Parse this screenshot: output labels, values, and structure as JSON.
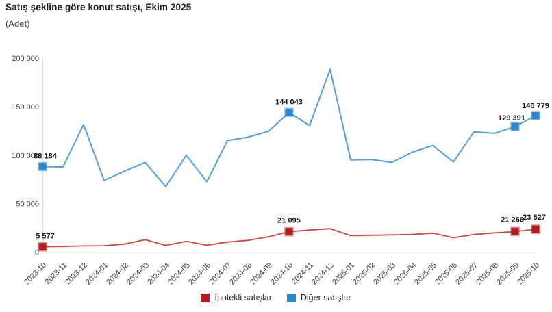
{
  "header": {
    "title": "Satış şekline göre konut satışı, Ekim 2025",
    "subtitle": "(Adet)"
  },
  "colors": {
    "mortgage_marker": "#b01e24",
    "mortgage_line": "#cb4742",
    "other_marker": "#2e86c8",
    "other_line": "#529fd8",
    "axis_line": "#dcdcdc",
    "tick_text": "#404040",
    "data_label_text": "#141414"
  },
  "legend": {
    "items": [
      {
        "label": "İpotekli satışlar",
        "color": "#b01e24"
      },
      {
        "label": "Diğer satışlar",
        "color": "#2e86c8"
      }
    ]
  },
  "chart_data": {
    "type": "line",
    "title": "Satış şekline göre konut satışı, Ekim 2025",
    "ylabel": "(Adet)",
    "xlabel": "",
    "ylim": [
      0,
      200000
    ],
    "grid": false,
    "legend_position": "bottom",
    "categories": [
      "2023-10",
      "2023-11",
      "2023-12",
      "2024-01",
      "2024-02",
      "2024-03",
      "2024-04",
      "2024-05",
      "2024-06",
      "2024-07",
      "2024-08",
      "2024-09",
      "2024-10",
      "2024-11",
      "2024-12",
      "2025-01",
      "2025-02",
      "2025-03",
      "2025-04",
      "2025-05",
      "2025-06",
      "2025-07",
      "2025-08",
      "2025-09",
      "2025-10"
    ],
    "yticks": [
      0,
      50000,
      100000,
      150000,
      200000
    ],
    "ytick_labels": [
      "0",
      "50 000",
      "100 000",
      "150 000",
      "200 000"
    ],
    "series": [
      {
        "name": "İpotekli satışlar",
        "line_color": "#cb4742",
        "marker_color": "#b01e24",
        "values": [
          5577,
          5900,
          6400,
          6600,
          8300,
          12900,
          7000,
          11100,
          7100,
          10400,
          12200,
          15800,
          21095,
          22800,
          24200,
          17000,
          17400,
          17800,
          18200,
          19600,
          14800,
          18200,
          19800,
          21266,
          23527
        ],
        "marker_indices": [
          0,
          12,
          23,
          24
        ],
        "point_labels": {
          "0": "5 577",
          "12": "21 095",
          "23": "21 266",
          "24": "23 527"
        }
      },
      {
        "name": "Diğer satışlar",
        "line_color": "#529fd8",
        "marker_color": "#2e86c8",
        "values": [
          88184,
          87800,
          131500,
          74000,
          83500,
          92500,
          67500,
          100000,
          72500,
          115000,
          118500,
          124500,
          144043,
          130500,
          188500,
          95000,
          95500,
          92500,
          103000,
          110000,
          93000,
          124000,
          122500,
          129391,
          140779
        ],
        "marker_indices": [
          0,
          12,
          23,
          24
        ],
        "point_labels": {
          "0": "88 184",
          "12": "144 043",
          "23": "129 391",
          "24": "140 779"
        }
      }
    ]
  }
}
